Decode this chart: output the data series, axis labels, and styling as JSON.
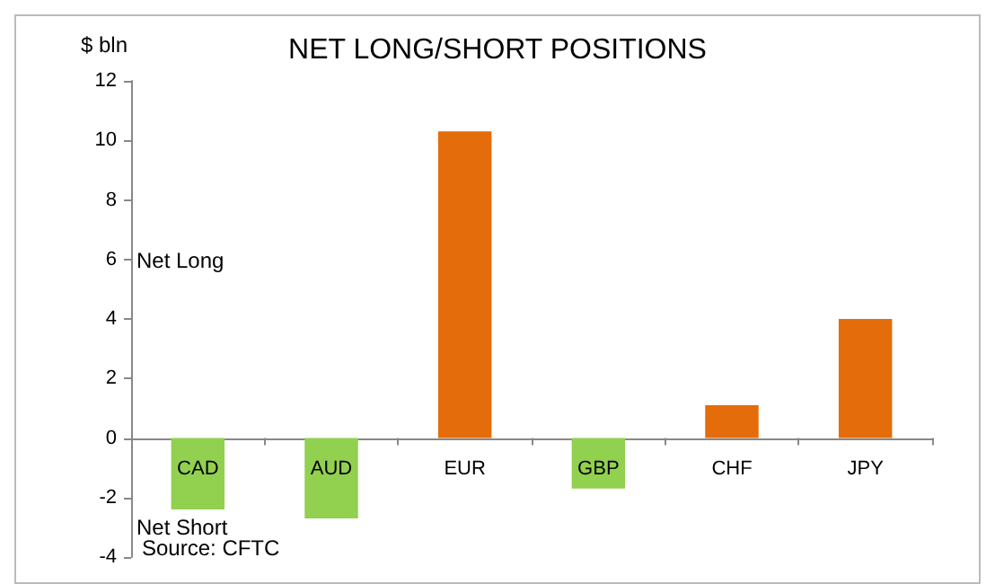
{
  "chart_data": {
    "type": "bar",
    "title": "NET LONG/SHORT POSITIONS",
    "ylabel": "$ bln",
    "categories": [
      "CAD",
      "AUD",
      "EUR",
      "GBP",
      "CHF",
      "JPY"
    ],
    "values": [
      -2.4,
      -2.7,
      10.3,
      -1.7,
      1.1,
      4.0
    ],
    "colors": [
      "#92d050",
      "#92d050",
      "#e46c0a",
      "#92d050",
      "#e46c0a",
      "#e46c0a"
    ],
    "ylim": [
      -4,
      12
    ],
    "yticks": [
      -4,
      -2,
      0,
      2,
      4,
      6,
      8,
      10,
      12
    ],
    "annotations": [
      "Net Long",
      "Net Short",
      "Source: CFTC"
    ]
  }
}
